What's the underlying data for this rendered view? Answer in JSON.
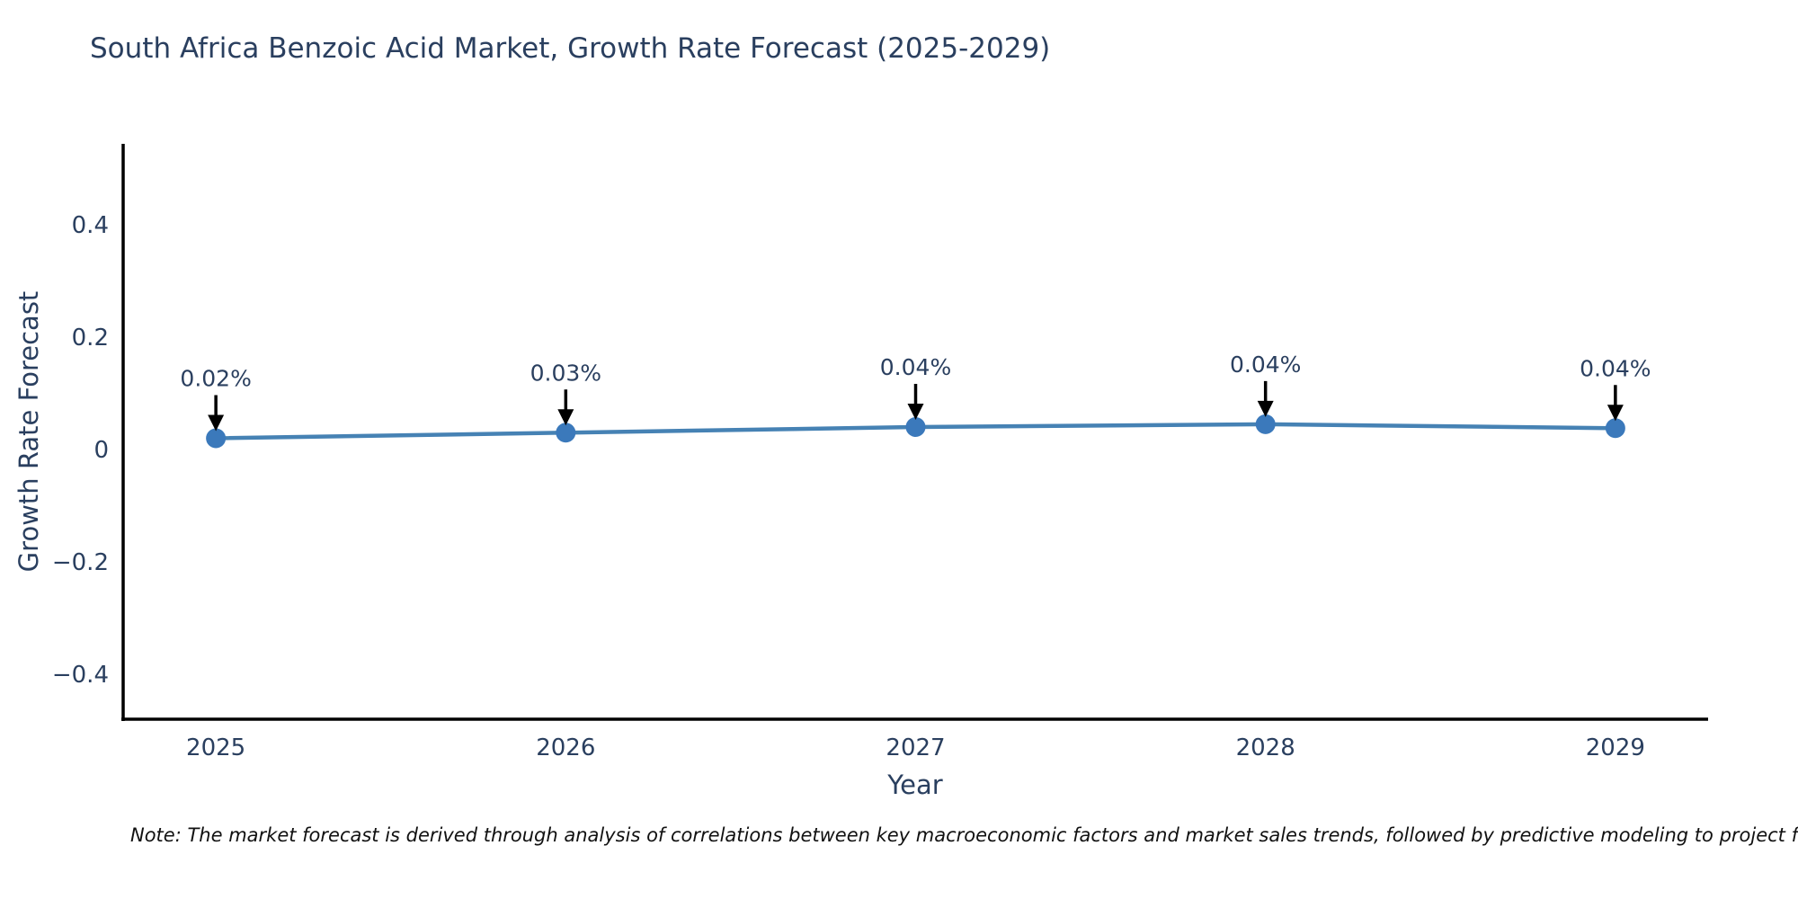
{
  "chart_data": {
    "type": "line",
    "title": "South Africa Benzoic Acid Market, Growth Rate Forecast (2025-2029)",
    "xlabel": "Year",
    "ylabel": "Growth Rate Forecast",
    "x": [
      2025,
      2026,
      2027,
      2028,
      2029
    ],
    "x_tick_labels": [
      "2025",
      "2026",
      "2027",
      "2028",
      "2029"
    ],
    "series": [
      {
        "name": "Growth Rate Forecast",
        "values": [
          0.02,
          0.03,
          0.04,
          0.045,
          0.038
        ]
      }
    ],
    "point_labels": [
      "0.02%",
      "0.03%",
      "0.04%",
      "0.04%",
      "0.04%"
    ],
    "yticks": [
      0.4,
      0.2,
      0,
      -0.2,
      -0.4
    ],
    "ytick_labels": [
      "0.4",
      "0.2",
      "0",
      "−0.2",
      "−0.4"
    ],
    "ylim": [
      -0.48,
      0.544
    ],
    "xlim": [
      2024.735,
      2029.265
    ],
    "grid": false,
    "legend_position": "none",
    "note": "Note: The market forecast is derived through analysis of correlations between key macroeconomic factors and market sales trends, followed by predictive modeling to project future sales.",
    "colors": {
      "line": "#4682b4",
      "marker": "#3b79bb",
      "axis": "#000000",
      "tick_text": "#2a3f5f",
      "annotation_text": "#2a3f5f",
      "arrow": "#000000",
      "background": "#ffffff"
    }
  }
}
